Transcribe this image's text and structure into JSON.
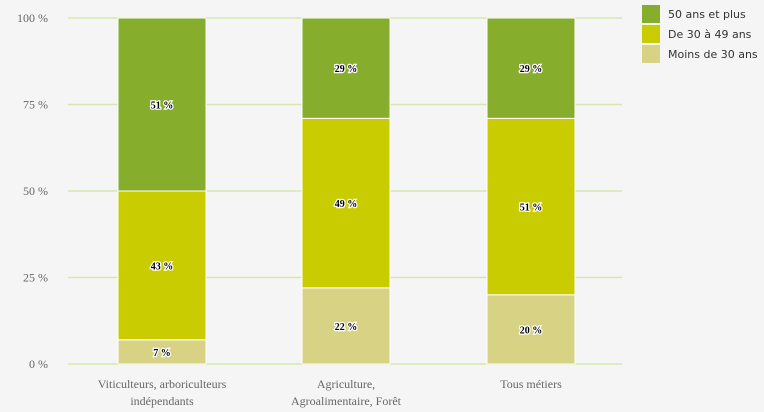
{
  "chart_data": {
    "type": "bar",
    "stacked": true,
    "categories": [
      [
        "Viticulteurs, arboriculteurs",
        "indépendants"
      ],
      [
        "Agriculture,",
        "Agroalimentaire, Forêt"
      ],
      [
        "Tous métiers"
      ]
    ],
    "series": [
      {
        "name": "Moins de 30 ans",
        "color": "#d8d384",
        "values": [
          7,
          22,
          20
        ],
        "labels": [
          "7 %",
          "22 %",
          "20 %"
        ]
      },
      {
        "name": "De 30 à 49 ans",
        "color": "#c9cc00",
        "values": [
          43,
          49,
          51
        ],
        "labels": [
          "43 %",
          "49 %",
          "51 %"
        ]
      },
      {
        "name": "50 ans et plus",
        "color": "#86ad2b",
        "values": [
          51,
          29,
          29
        ],
        "labels": [
          "51 %",
          "29 %",
          "29 %"
        ]
      }
    ],
    "legend_order": [
      "50 ans et plus",
      "De 30 à 49 ans",
      "Moins de 30 ans"
    ],
    "yticks": [
      "0 %",
      "25 %",
      "50 %",
      "75 %",
      "100 %"
    ],
    "ylim": [
      0,
      100
    ],
    "grid": true,
    "legend_position": "top-right",
    "gridline_color": "#d7e6ad"
  }
}
